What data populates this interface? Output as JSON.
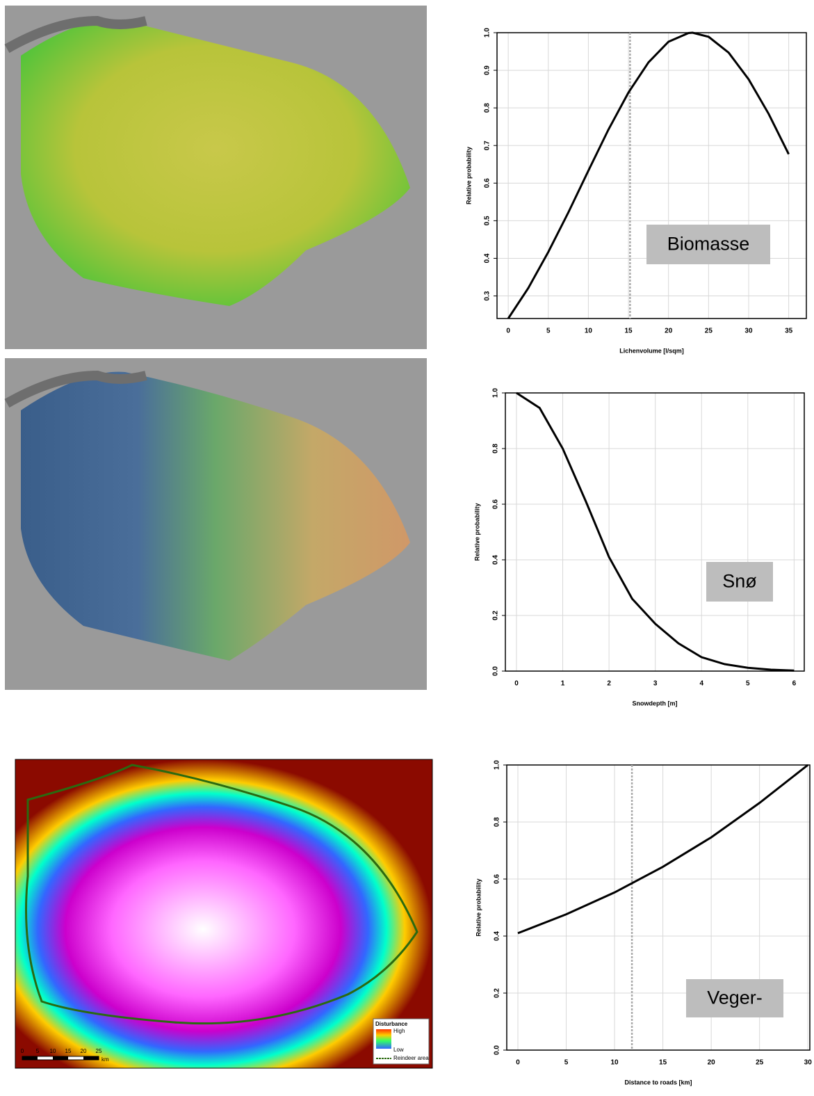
{
  "chart_data": [
    {
      "type": "line",
      "label": "Biomasse",
      "x_label": "Lichenvolume [l/sqm]",
      "y_label": "Relative probability",
      "x": [
        0,
        2.5,
        5,
        7.5,
        10,
        12.5,
        15,
        17.5,
        20,
        22.5,
        23,
        25,
        27.5,
        30,
        32.5,
        35
      ],
      "values": [
        0.24,
        0.321,
        0.417,
        0.522,
        0.633,
        0.742,
        0.841,
        0.921,
        0.976,
        0.999,
        1.0,
        0.989,
        0.947,
        0.876,
        0.784,
        0.677
      ],
      "color": "#000000",
      "vline": 15.2,
      "grid": true,
      "xlim": [
        -1.4,
        37.2
      ],
      "ylim": [
        0.24,
        1.0
      ],
      "xticks": [
        0,
        5,
        10,
        15,
        20,
        25,
        30,
        35
      ],
      "yticks": [
        0.3,
        0.4,
        0.5,
        0.6,
        0.7,
        0.8,
        0.9,
        {
          "value": 1,
          "label": "1.0"
        }
      ]
    },
    {
      "type": "line",
      "label": "Snø",
      "x_label": "Snowdepth [m]",
      "y_label": "Relative probability",
      "x": [
        0,
        0.5,
        1,
        1.5,
        2,
        2.5,
        3,
        3.5,
        4,
        4.5,
        5,
        5.5,
        6
      ],
      "values": [
        1.0,
        0.946,
        0.8,
        0.61,
        0.41,
        0.26,
        0.17,
        0.1,
        0.05,
        0.025,
        0.012,
        0.005,
        0.002
      ],
      "color": "#000000",
      "grid": true,
      "xlim": [
        -0.24,
        6.22
      ],
      "ylim": [
        0,
        1
      ],
      "xticks": [
        0,
        1,
        2,
        3,
        4,
        5,
        6
      ],
      "yticks": [
        {
          "value": 0,
          "label": "0.0"
        },
        0.2,
        0.4,
        0.6,
        0.8,
        {
          "value": 1,
          "label": "1.0"
        }
      ]
    },
    {
      "type": "line",
      "label": "Veger-",
      "x_label": "Distance to roads [km]",
      "y_label": "Relative probability",
      "x": [
        0,
        5,
        10,
        15,
        20,
        25,
        30
      ],
      "values": [
        0.41,
        0.476,
        0.553,
        0.643,
        0.746,
        0.867,
        1.0
      ],
      "color": "#000000",
      "vline": 11.8,
      "grid": true,
      "xlim": [
        -1.15,
        30.2
      ],
      "ylim": [
        0,
        1
      ],
      "xticks": [
        0,
        5,
        10,
        15,
        20,
        25,
        30
      ],
      "yticks": [
        {
          "value": 0,
          "label": "0.0"
        },
        0.2,
        0.4,
        0.6,
        0.8,
        {
          "value": 1,
          "label": "1.0"
        }
      ]
    }
  ],
  "map": {
    "legend_title": "Disturbance",
    "legend_items": [
      "High",
      "Low",
      "Reindeer area"
    ],
    "scale_labels": [
      "0",
      "5",
      "10",
      "15",
      "20",
      "25"
    ],
    "scale_unit": "km"
  }
}
